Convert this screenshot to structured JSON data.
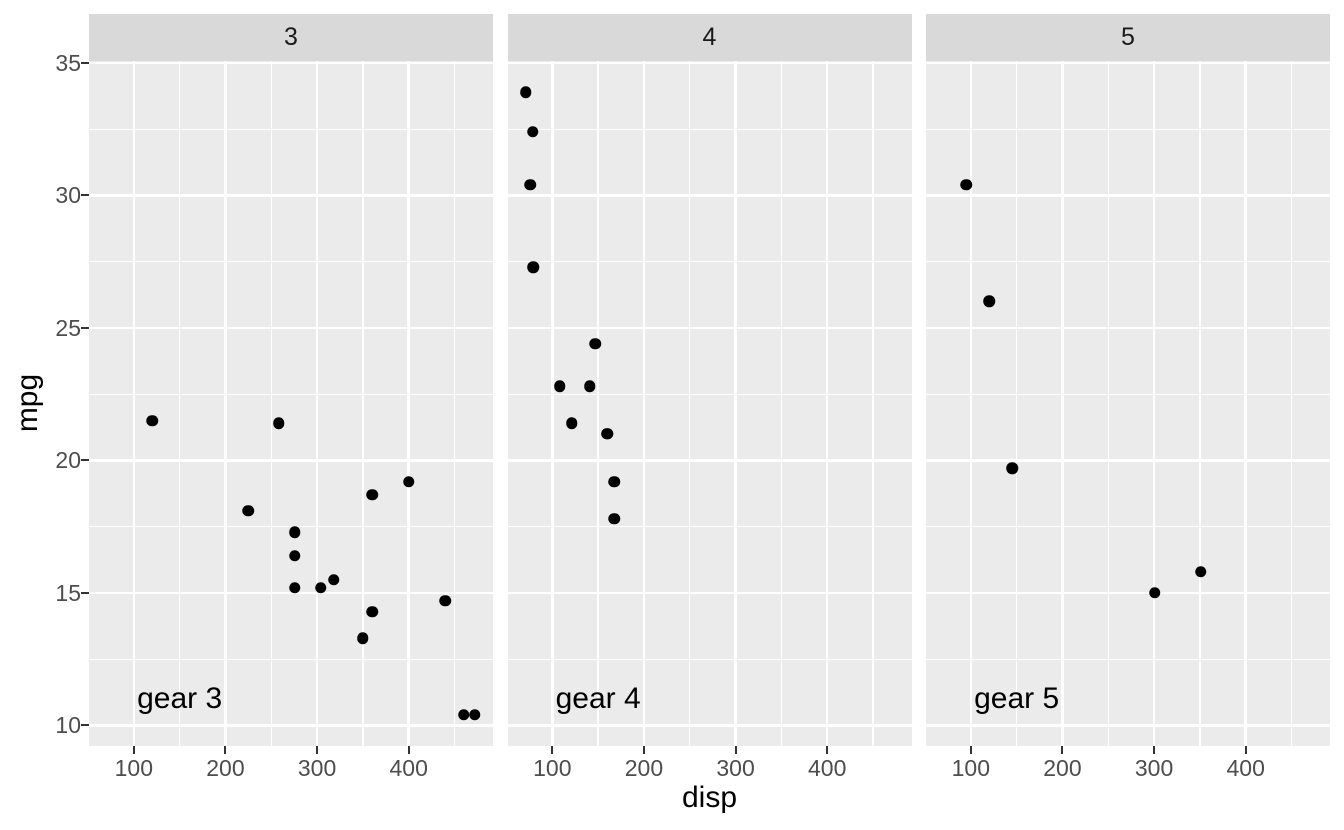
{
  "chart_data": {
    "type": "scatter",
    "title": "",
    "xlabel": "disp",
    "ylabel": "mpg",
    "facet_variable": "gear",
    "legend_position": "none",
    "grid": true,
    "xlim": [
      51.05,
      492.05
    ],
    "ylim": [
      9.225,
      35.075
    ],
    "x_ticks": [
      100,
      200,
      300,
      400
    ],
    "y_ticks": [
      10,
      15,
      20,
      25,
      30,
      35
    ],
    "x_minor_gridlines": [
      150,
      250,
      350,
      450
    ],
    "y_minor_gridlines": [
      12.5,
      17.5,
      22.5,
      27.5,
      32.5
    ],
    "facets": [
      {
        "strip_label": "3",
        "annotation": {
          "label": "gear 3",
          "x": 150,
          "y": 11
        },
        "points": [
          [
            258,
            21.4
          ],
          [
            360,
            18.7
          ],
          [
            225,
            18.1
          ],
          [
            360,
            14.3
          ],
          [
            275.8,
            16.4
          ],
          [
            275.8,
            17.3
          ],
          [
            275.8,
            15.2
          ],
          [
            472,
            10.4
          ],
          [
            460,
            10.4
          ],
          [
            440,
            14.7
          ],
          [
            120.1,
            21.5
          ],
          [
            318,
            15.5
          ],
          [
            304,
            15.2
          ],
          [
            350,
            13.3
          ],
          [
            400,
            19.2
          ]
        ]
      },
      {
        "strip_label": "4",
        "annotation": {
          "label": "gear 4",
          "x": 150,
          "y": 11
        },
        "points": [
          [
            160,
            21.0
          ],
          [
            160,
            21.0
          ],
          [
            108,
            22.8
          ],
          [
            146.7,
            24.4
          ],
          [
            140.8,
            22.8
          ],
          [
            167.6,
            19.2
          ],
          [
            167.6,
            17.8
          ],
          [
            78.7,
            32.4
          ],
          [
            75.7,
            30.4
          ],
          [
            71.1,
            33.9
          ],
          [
            79,
            27.3
          ],
          [
            121,
            21.4
          ]
        ]
      },
      {
        "strip_label": "5",
        "annotation": {
          "label": "gear 5",
          "x": 150,
          "y": 11
        },
        "points": [
          [
            120.3,
            26.0
          ],
          [
            95.1,
            30.4
          ],
          [
            351,
            15.8
          ],
          [
            145,
            19.7
          ],
          [
            301,
            15.0
          ]
        ]
      }
    ],
    "colors": {
      "plot_background": "#ffffff",
      "panel_background": "#ebebeb",
      "strip_background": "#d9d9d9",
      "gridline": "#ffffff",
      "point": "#000000",
      "tick_mark": "#333333",
      "tick_label": "#4d4d4d",
      "axis_title": "#000000",
      "strip_text": "#1a1a1a",
      "annotation_text": "#000000"
    }
  }
}
